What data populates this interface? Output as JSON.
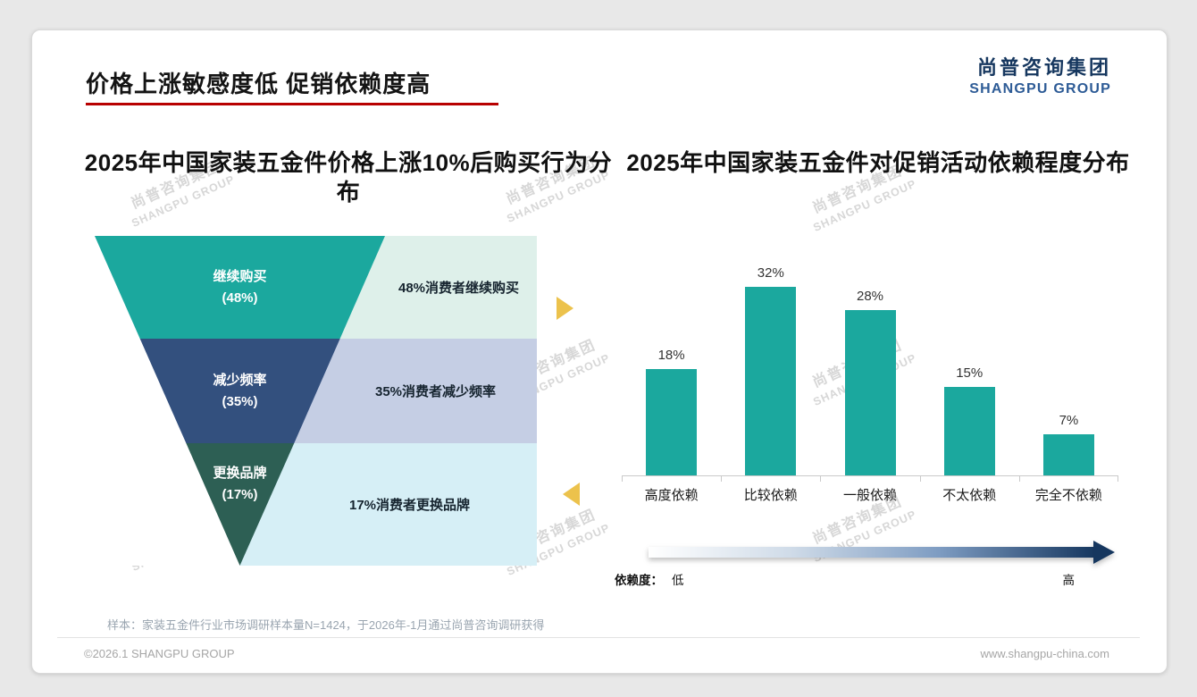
{
  "page": {
    "title": "价格上涨敏感度低 促销依赖度高",
    "accent_color": "#b80000",
    "logo": {
      "cn": "尚普咨询集团",
      "en": "SHANGPU GROUP",
      "color": "#16375f"
    },
    "watermark": {
      "line1": "尚普咨询集团",
      "line2": "SHANGPU GROUP"
    },
    "decor": {
      "side_arrow_color": "#ecc24c"
    },
    "note": "样本：家装五金件行业市场调研样本量N=1424，于2026年-1月通过尚普咨询调研获得",
    "footer": {
      "left": "©2026.1 SHANGPU GROUP",
      "right": "www.shangpu-china.com"
    }
  },
  "chart_data": [
    {
      "type": "funnel",
      "title": "2025年中国家装五金件价格上涨10%后购买行为分布",
      "categories": [
        "继续购买",
        "减少频率",
        "更换品牌"
      ],
      "values": [
        48,
        35,
        17
      ],
      "unit": "%",
      "stages": [
        {
          "label": "继续购买",
          "value_label": "(48%)",
          "annotation": "48%消费者继续购买"
        },
        {
          "label": "减少频率",
          "value_label": "(35%)",
          "annotation": "35%消费者减少频率"
        },
        {
          "label": "更换品牌",
          "value_label": "(17%)",
          "annotation": "17%消费者更换品牌"
        }
      ],
      "colors": [
        "#1ba89e",
        "#33507e",
        "#2d5f54"
      ],
      "annotation_bg": [
        "#def0ea",
        "#c5cee4",
        "#d6eff6"
      ]
    },
    {
      "type": "bar",
      "title": "2025年中国家装五金件对促销活动依赖程度分布",
      "categories": [
        "高度依赖",
        "比较依赖",
        "一般依赖",
        "不太依赖",
        "完全不依赖"
      ],
      "values": [
        18,
        32,
        28,
        15,
        7
      ],
      "data_labels": [
        "18%",
        "32%",
        "28%",
        "15%",
        "7%"
      ],
      "unit": "%",
      "bar_color": "#1ba89e",
      "ylim": [
        0,
        35
      ],
      "grid": false,
      "legend": "none",
      "axis_annotation": {
        "prefix": "依赖度：",
        "low": "低",
        "high": "高",
        "gradient": [
          "#ffffff",
          "#16375f"
        ]
      }
    }
  ]
}
